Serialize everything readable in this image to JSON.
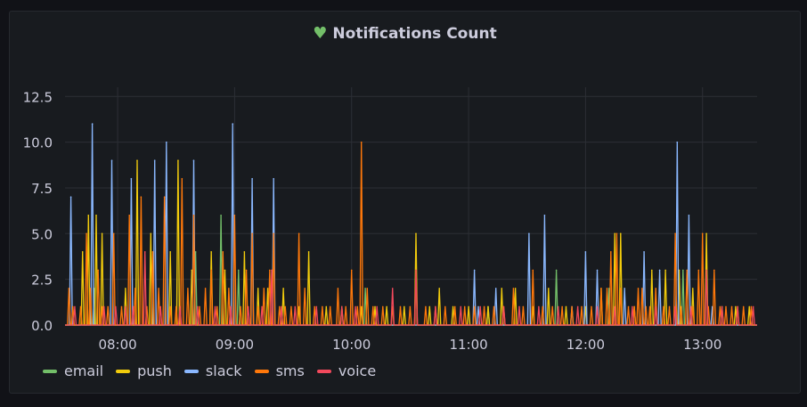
{
  "panel": {
    "title": "Notifications Count",
    "status_icon": "heart-icon",
    "status_color": "#73bf69"
  },
  "legend": [
    {
      "label": "email",
      "color": "#73bf69"
    },
    {
      "label": "push",
      "color": "#f2cc0c"
    },
    {
      "label": "slack",
      "color": "#8ab8ff"
    },
    {
      "label": "sms",
      "color": "#ff780a"
    },
    {
      "label": "voice",
      "color": "#f2495c"
    }
  ],
  "chart_data": {
    "type": "line",
    "title": "Notifications Count",
    "xlabel": "",
    "ylabel": "",
    "x_ticks": [
      "08:00",
      "09:00",
      "10:00",
      "11:00",
      "12:00",
      "13:00"
    ],
    "y_ticks": [
      "0.0",
      "2.5",
      "5.0",
      "7.5",
      "10.0",
      "12.5"
    ],
    "ylim": [
      0,
      13
    ],
    "xlim": [
      "07:33",
      "13:28"
    ],
    "grid": true,
    "legend_position": "bottom-left",
    "series": [
      {
        "name": "email",
        "color": "#73bf69",
        "points": [
          [
            "07:48",
            2
          ],
          [
            "08:40",
            4
          ],
          [
            "08:53",
            6
          ],
          [
            "09:02",
            3
          ],
          [
            "10:07",
            2
          ],
          [
            "11:10",
            1
          ],
          [
            "11:45",
            3
          ],
          [
            "12:12",
            2
          ],
          [
            "12:50",
            3
          ]
        ]
      },
      {
        "name": "push",
        "color": "#f2cc0c",
        "points": [
          [
            "07:42",
            4
          ],
          [
            "07:45",
            6
          ],
          [
            "07:49",
            6
          ],
          [
            "07:52",
            5
          ],
          [
            "08:04",
            2
          ],
          [
            "08:10",
            9
          ],
          [
            "08:17",
            5
          ],
          [
            "08:27",
            4
          ],
          [
            "08:31",
            9
          ],
          [
            "08:38",
            3
          ],
          [
            "08:48",
            4
          ],
          [
            "08:55",
            3
          ],
          [
            "09:05",
            4
          ],
          [
            "09:12",
            2
          ],
          [
            "09:17",
            2
          ],
          [
            "09:25",
            2
          ],
          [
            "09:33",
            1
          ],
          [
            "09:38",
            4
          ],
          [
            "09:47",
            1
          ],
          [
            "09:55",
            1
          ],
          [
            "10:05",
            1
          ],
          [
            "10:12",
            1
          ],
          [
            "10:18",
            1
          ],
          [
            "10:27",
            1
          ],
          [
            "10:33",
            5
          ],
          [
            "10:40",
            1
          ],
          [
            "10:45",
            2
          ],
          [
            "10:52",
            1
          ],
          [
            "11:00",
            1
          ],
          [
            "11:10",
            1
          ],
          [
            "11:17",
            2
          ],
          [
            "11:24",
            2
          ],
          [
            "11:33",
            1
          ],
          [
            "11:41",
            2
          ],
          [
            "11:50",
            1
          ],
          [
            "12:00",
            1
          ],
          [
            "12:08",
            2
          ],
          [
            "12:15",
            5
          ],
          [
            "12:18",
            5
          ],
          [
            "12:25",
            1
          ],
          [
            "12:34",
            3
          ],
          [
            "12:41",
            3
          ],
          [
            "12:48",
            3
          ],
          [
            "12:55",
            2
          ],
          [
            "13:02",
            5
          ],
          [
            "13:10",
            1
          ],
          [
            "13:17",
            1
          ],
          [
            "13:24",
            1
          ]
        ]
      },
      {
        "name": "slack",
        "color": "#8ab8ff",
        "points": [
          [
            "07:36",
            7
          ],
          [
            "07:47",
            11
          ],
          [
            "07:57",
            9
          ],
          [
            "08:07",
            8
          ],
          [
            "08:19",
            9
          ],
          [
            "08:25",
            10
          ],
          [
            "08:39",
            9
          ],
          [
            "08:59",
            11
          ],
          [
            "09:09",
            8
          ],
          [
            "09:20",
            8
          ],
          [
            "11:03",
            3
          ],
          [
            "11:05",
            1
          ],
          [
            "11:14",
            2
          ],
          [
            "11:31",
            5
          ],
          [
            "11:39",
            6
          ],
          [
            "11:53",
            1
          ],
          [
            "12:00",
            4
          ],
          [
            "12:06",
            3
          ],
          [
            "12:20",
            2
          ],
          [
            "12:30",
            4
          ],
          [
            "12:38",
            3
          ],
          [
            "12:47",
            10
          ],
          [
            "12:53",
            6
          ],
          [
            "13:05",
            1
          ]
        ]
      },
      {
        "name": "sms",
        "color": "#ff780a",
        "points": [
          [
            "07:35",
            2
          ],
          [
            "07:37",
            1
          ],
          [
            "07:41",
            1
          ],
          [
            "07:44",
            5
          ],
          [
            "07:46",
            2
          ],
          [
            "07:50",
            3
          ],
          [
            "07:52",
            1
          ],
          [
            "07:55",
            1
          ],
          [
            "07:58",
            5
          ],
          [
            "08:02",
            1
          ],
          [
            "08:06",
            6
          ],
          [
            "08:09",
            2
          ],
          [
            "08:12",
            7
          ],
          [
            "08:15",
            1
          ],
          [
            "08:18",
            4
          ],
          [
            "08:21",
            2
          ],
          [
            "08:24",
            7
          ],
          [
            "08:27",
            1
          ],
          [
            "08:30",
            1
          ],
          [
            "08:33",
            8
          ],
          [
            "08:36",
            2
          ],
          [
            "08:39",
            6
          ],
          [
            "08:42",
            1
          ],
          [
            "08:45",
            2
          ],
          [
            "08:48",
            3
          ],
          [
            "08:51",
            1
          ],
          [
            "08:54",
            4
          ],
          [
            "08:57",
            2
          ],
          [
            "09:00",
            6
          ],
          [
            "09:03",
            1
          ],
          [
            "09:06",
            3
          ],
          [
            "09:09",
            5
          ],
          [
            "09:12",
            1
          ],
          [
            "09:15",
            2
          ],
          [
            "09:18",
            3
          ],
          [
            "09:20",
            5
          ],
          [
            "09:23",
            1
          ],
          [
            "09:26",
            1
          ],
          [
            "09:29",
            1
          ],
          [
            "09:33",
            5
          ],
          [
            "09:36",
            2
          ],
          [
            "09:41",
            1
          ],
          [
            "09:45",
            1
          ],
          [
            "09:49",
            1
          ],
          [
            "09:53",
            2
          ],
          [
            "09:57",
            1
          ],
          [
            "10:00",
            3
          ],
          [
            "10:03",
            1
          ],
          [
            "10:05",
            10
          ],
          [
            "10:08",
            2
          ],
          [
            "10:11",
            1
          ],
          [
            "10:16",
            1
          ],
          [
            "10:21",
            1
          ],
          [
            "10:25",
            1
          ],
          [
            "10:30",
            1
          ],
          [
            "10:33",
            3
          ],
          [
            "10:38",
            1
          ],
          [
            "10:43",
            1
          ],
          [
            "10:48",
            1
          ],
          [
            "10:53",
            1
          ],
          [
            "10:58",
            1
          ],
          [
            "11:03",
            1
          ],
          [
            "11:08",
            1
          ],
          [
            "11:13",
            1
          ],
          [
            "11:18",
            1
          ],
          [
            "11:23",
            2
          ],
          [
            "11:28",
            1
          ],
          [
            "11:33",
            3
          ],
          [
            "11:38",
            1
          ],
          [
            "11:43",
            1
          ],
          [
            "11:48",
            1
          ],
          [
            "11:53",
            1
          ],
          [
            "11:58",
            1
          ],
          [
            "12:03",
            1
          ],
          [
            "12:08",
            2
          ],
          [
            "12:11",
            2
          ],
          [
            "12:13",
            4
          ],
          [
            "12:16",
            5
          ],
          [
            "12:18",
            2
          ],
          [
            "12:22",
            1
          ],
          [
            "12:25",
            1
          ],
          [
            "12:27",
            2
          ],
          [
            "12:29",
            2
          ],
          [
            "12:31",
            1
          ],
          [
            "12:33",
            1
          ],
          [
            "12:36",
            2
          ],
          [
            "12:40",
            1
          ],
          [
            "12:43",
            1
          ],
          [
            "12:46",
            5
          ],
          [
            "12:49",
            1
          ],
          [
            "12:52",
            3
          ],
          [
            "12:55",
            1
          ],
          [
            "12:58",
            3
          ],
          [
            "13:00",
            5
          ],
          [
            "13:03",
            1
          ],
          [
            "13:06",
            3
          ],
          [
            "13:09",
            1
          ],
          [
            "13:12",
            1
          ],
          [
            "13:15",
            1
          ],
          [
            "13:18",
            1
          ],
          [
            "13:21",
            1
          ],
          [
            "13:25",
            1
          ]
        ]
      },
      {
        "name": "voice",
        "color": "#f2495c",
        "points": [
          [
            "07:38",
            1
          ],
          [
            "07:53",
            1
          ],
          [
            "07:59",
            1
          ],
          [
            "08:04",
            1
          ],
          [
            "08:08",
            1
          ],
          [
            "08:14",
            4
          ],
          [
            "08:22",
            1
          ],
          [
            "08:32",
            1
          ],
          [
            "08:41",
            1
          ],
          [
            "08:50",
            1
          ],
          [
            "08:58",
            1
          ],
          [
            "09:07",
            1
          ],
          [
            "09:14",
            1
          ],
          [
            "09:19",
            3
          ],
          [
            "09:24",
            1
          ],
          [
            "09:31",
            1
          ],
          [
            "09:42",
            1
          ],
          [
            "09:55",
            1
          ],
          [
            "10:02",
            1
          ],
          [
            "10:13",
            1
          ],
          [
            "10:21",
            2
          ],
          [
            "10:33",
            3
          ],
          [
            "10:43",
            1
          ],
          [
            "10:56",
            1
          ],
          [
            "11:06",
            1
          ],
          [
            "11:18",
            1
          ],
          [
            "11:26",
            1
          ],
          [
            "11:36",
            1
          ],
          [
            "11:46",
            1
          ],
          [
            "11:56",
            1
          ],
          [
            "12:06",
            1
          ],
          [
            "12:15",
            1
          ],
          [
            "12:24",
            1
          ],
          [
            "12:36",
            1
          ],
          [
            "12:46",
            1
          ],
          [
            "12:54",
            1
          ],
          [
            "13:02",
            3
          ],
          [
            "13:10",
            1
          ],
          [
            "13:18",
            1
          ],
          [
            "13:26",
            1
          ]
        ]
      }
    ]
  }
}
